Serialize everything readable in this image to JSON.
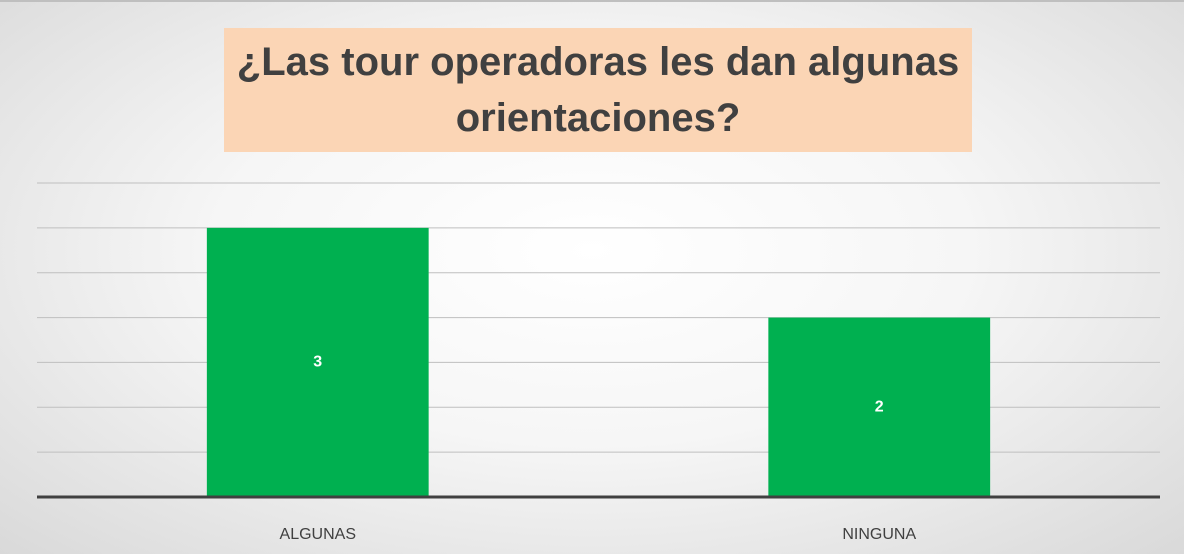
{
  "chart_data": {
    "type": "bar",
    "title": "¿Las tour operadoras les dan algunas orientaciones?",
    "categories": [
      "ALGUNAS",
      "NINGUNA"
    ],
    "values": [
      3,
      2
    ],
    "color": "#00b050",
    "ylim": [
      0,
      3.5
    ],
    "yticks": [
      0,
      0.5,
      1,
      1.5,
      2,
      2.5,
      3,
      3.5
    ],
    "grid": true
  }
}
